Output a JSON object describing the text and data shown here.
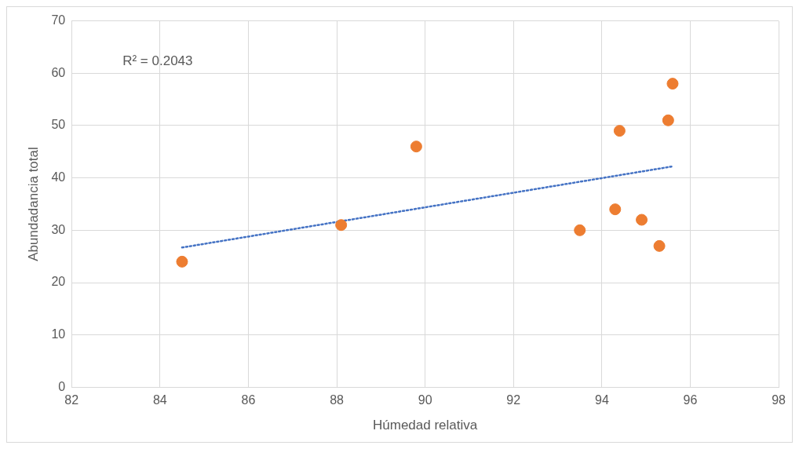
{
  "chart_data": {
    "type": "scatter",
    "xlabel": "Húmedad relativa",
    "ylabel": "Abundadancia total",
    "xlim": [
      82,
      98
    ],
    "xticks": [
      82,
      84,
      86,
      88,
      90,
      92,
      94,
      96,
      98
    ],
    "ylim": [
      0,
      70
    ],
    "yticks": [
      0,
      10,
      20,
      30,
      40,
      50,
      60,
      70
    ],
    "grid": true,
    "legend": false,
    "marker": "circle",
    "annotations": [
      "R² = 0.2043"
    ],
    "series": [
      {
        "type": "scatter",
        "color": "#ed7d31",
        "x": [
          84.5,
          88.1,
          89.8,
          93.5,
          94.3,
          94.4,
          94.9,
          95.3,
          95.5,
          95.6
        ],
        "values": [
          24,
          31,
          46,
          30,
          34,
          49,
          32,
          27,
          51,
          58
        ]
      },
      {
        "type": "line",
        "color": "#4472c4",
        "line_style": "dotted",
        "marker": "none",
        "x": [
          84.5,
          95.6
        ],
        "values": [
          26.7,
          42.2
        ]
      }
    ]
  }
}
